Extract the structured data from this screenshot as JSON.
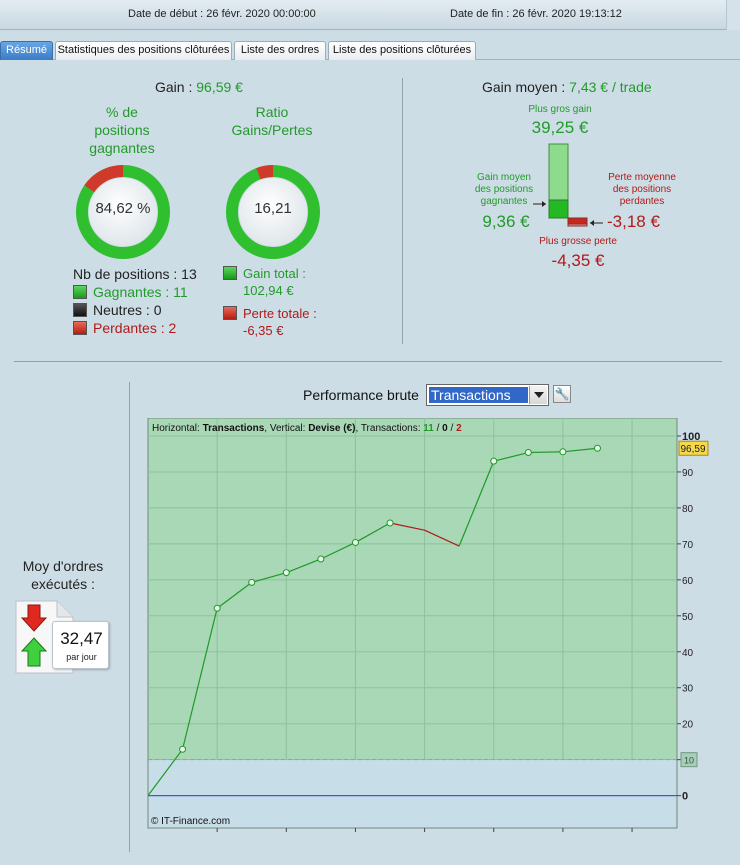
{
  "header": {
    "start_label": "Date de début : 26 févr. 2020 00:00:00",
    "end_label": "Date de fin : 26 févr. 2020 19:13:12"
  },
  "tabs": [
    {
      "label": "Résumé",
      "active": true
    },
    {
      "label": "Statistiques des positions clôturées",
      "active": false
    },
    {
      "label": "Liste des ordres",
      "active": false
    },
    {
      "label": "Liste des positions clôturées",
      "active": false
    }
  ],
  "summary": {
    "gain_label": "Gain :",
    "gain_value": "96,59 €",
    "winning_pct_title_1": "% de",
    "winning_pct_title_2": "positions",
    "winning_pct_title_3": "gagnantes",
    "winning_pct_value": "84,62 %",
    "winning_fraction": 0.8462,
    "ratio_title_1": "Ratio",
    "ratio_title_2": "Gains/Pertes",
    "ratio_value": "16,21",
    "ratio_fraction": 0.942,
    "positions_count_label": "Nb de positions : 13",
    "winners_label": "Gagnantes : 11",
    "neutral_label": "Neutres : 0",
    "losers_label": "Perdantes : 2",
    "total_gain_label": "Gain total :",
    "total_gain_value": "102,94 €",
    "total_loss_label": "Perte totale :",
    "total_loss_value": "-6,35 €"
  },
  "average": {
    "title_label": "Gain moyen :",
    "title_value": "7,43 € / trade",
    "biggest_gain_label": "Plus gros gain",
    "biggest_gain_value": "39,25 €",
    "avg_win_label_1": "Gain moyen",
    "avg_win_label_2": "des positions",
    "avg_win_label_3": "gagnantes",
    "avg_win_value": "9,36 €",
    "avg_loss_label_1": "Perte moyenne",
    "avg_loss_label_2": "des positions",
    "avg_loss_label_3": "perdantes",
    "avg_loss_value": "-3,18 €",
    "biggest_loss_label": "Plus grosse perte",
    "biggest_loss_value": "-4,35 €"
  },
  "orders": {
    "title_1": "Moy d'ordres",
    "title_2": "exécutés :",
    "value": "32,47",
    "unit": "par jour"
  },
  "performance": {
    "title": "Performance brute",
    "select_value": "Transactions"
  },
  "colors": {
    "accent": "#3a7cc8",
    "win": "#229a2a",
    "loss": "#b01a1a",
    "plot_bg": "#a8d8b6"
  },
  "chart_data": {
    "type": "line",
    "info_prefix": "Horizontal: ",
    "info_x": "Transactions",
    "info_mid": ", Vertical: ",
    "info_y": "Devise (€)",
    "info_tx": ", Transactions: ",
    "info_win": "11",
    "info_sep1": " / ",
    "info_neutral": "0",
    "info_sep2": " / ",
    "info_loss": "2",
    "x": [
      0,
      1,
      2,
      3,
      4,
      5,
      6,
      7,
      8,
      9,
      10,
      11,
      12,
      13
    ],
    "values": [
      0,
      12.9,
      52.1,
      59.3,
      62.0,
      65.8,
      70.4,
      75.8,
      73.8,
      69.4,
      93.0,
      95.4,
      95.6,
      96.59
    ],
    "trade_results": [
      "win",
      "win",
      "win",
      "win",
      "win",
      "win",
      "win",
      "loss",
      "loss",
      "win",
      "win",
      "win",
      "win"
    ],
    "xlim": [
      0,
      15.3
    ],
    "ylim": [
      -9,
      105
    ],
    "x_ticks": [
      2,
      4,
      6,
      8,
      10,
      12,
      14
    ],
    "y_ticks": [
      0,
      10,
      20,
      30,
      40,
      50,
      60,
      70,
      80,
      90,
      100
    ],
    "last_value_badge": "96,59",
    "reference_line": 10,
    "reference_badge": "10",
    "copyright": "© IT-Finance.com",
    "grid": true
  }
}
